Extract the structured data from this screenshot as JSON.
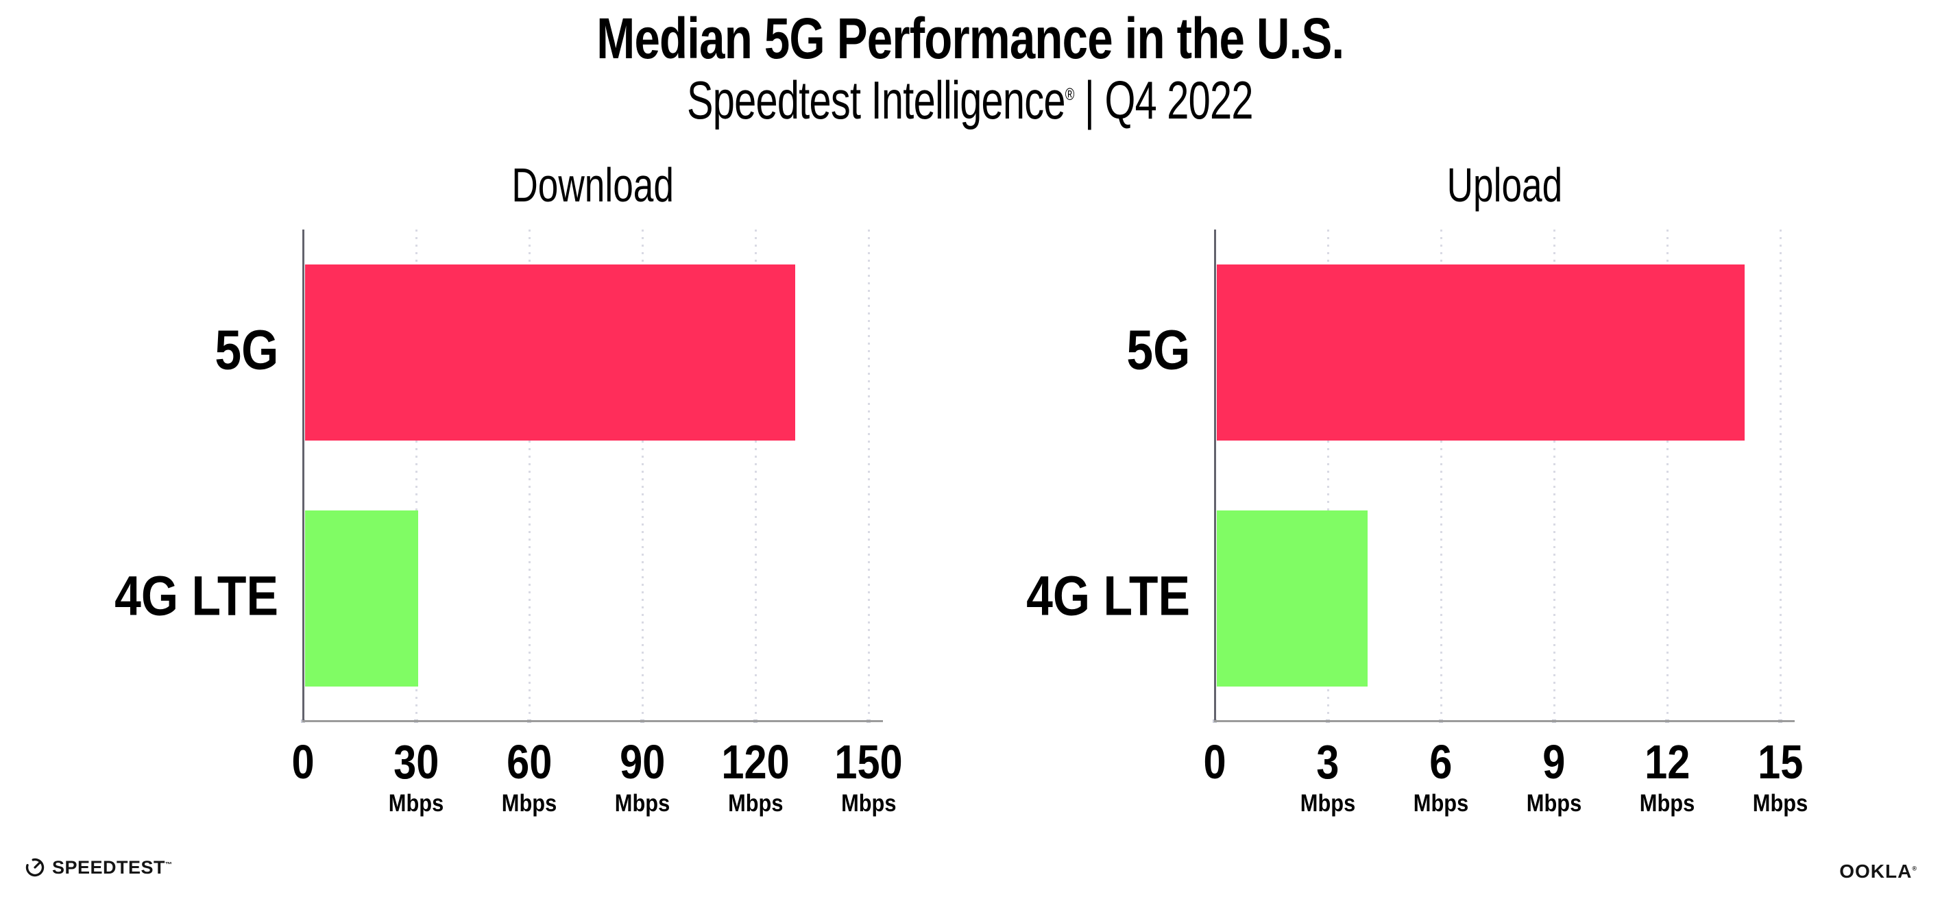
{
  "header": {
    "title": "Median 5G Performance in the U.S.",
    "subtitle_brand": "Speedtest Intelligence",
    "subtitle_reg": "®",
    "subtitle_rest": " | Q4 2022"
  },
  "colors": {
    "bar_5g": "#FF2D5A",
    "bar_4g_lte": "#80FC64",
    "x_axis": "#9B9B9B",
    "y_axis": "#63636D",
    "gridline": "#D9DAE4",
    "text": "#000000"
  },
  "chart_data": [
    {
      "type": "bar",
      "orientation": "horizontal",
      "title": "Download",
      "categories": [
        "5G",
        "4G LTE"
      ],
      "values": [
        130,
        30
      ],
      "unit": "Mbps",
      "xlim": [
        0,
        150
      ],
      "ticks": [
        0,
        30,
        60,
        90,
        120,
        150
      ],
      "tick_unit": "Mbps",
      "grid": "vertical-dotted",
      "legend": "none",
      "bar_colors": [
        "#FF2D5A",
        "#80FC64"
      ]
    },
    {
      "type": "bar",
      "orientation": "horizontal",
      "title": "Upload",
      "categories": [
        "5G",
        "4G LTE"
      ],
      "values": [
        14,
        4
      ],
      "unit": "Mbps",
      "xlim": [
        0,
        15
      ],
      "ticks": [
        0,
        3,
        6,
        9,
        12,
        15
      ],
      "tick_unit": "Mbps",
      "grid": "vertical-dotted",
      "legend": "none",
      "bar_colors": [
        "#FF2D5A",
        "#80FC64"
      ]
    }
  ],
  "footer": {
    "speedtest_label": "SPEEDTEST",
    "speedtest_tm": "™",
    "ookla_label": "OOKLA",
    "ookla_reg": "®"
  }
}
